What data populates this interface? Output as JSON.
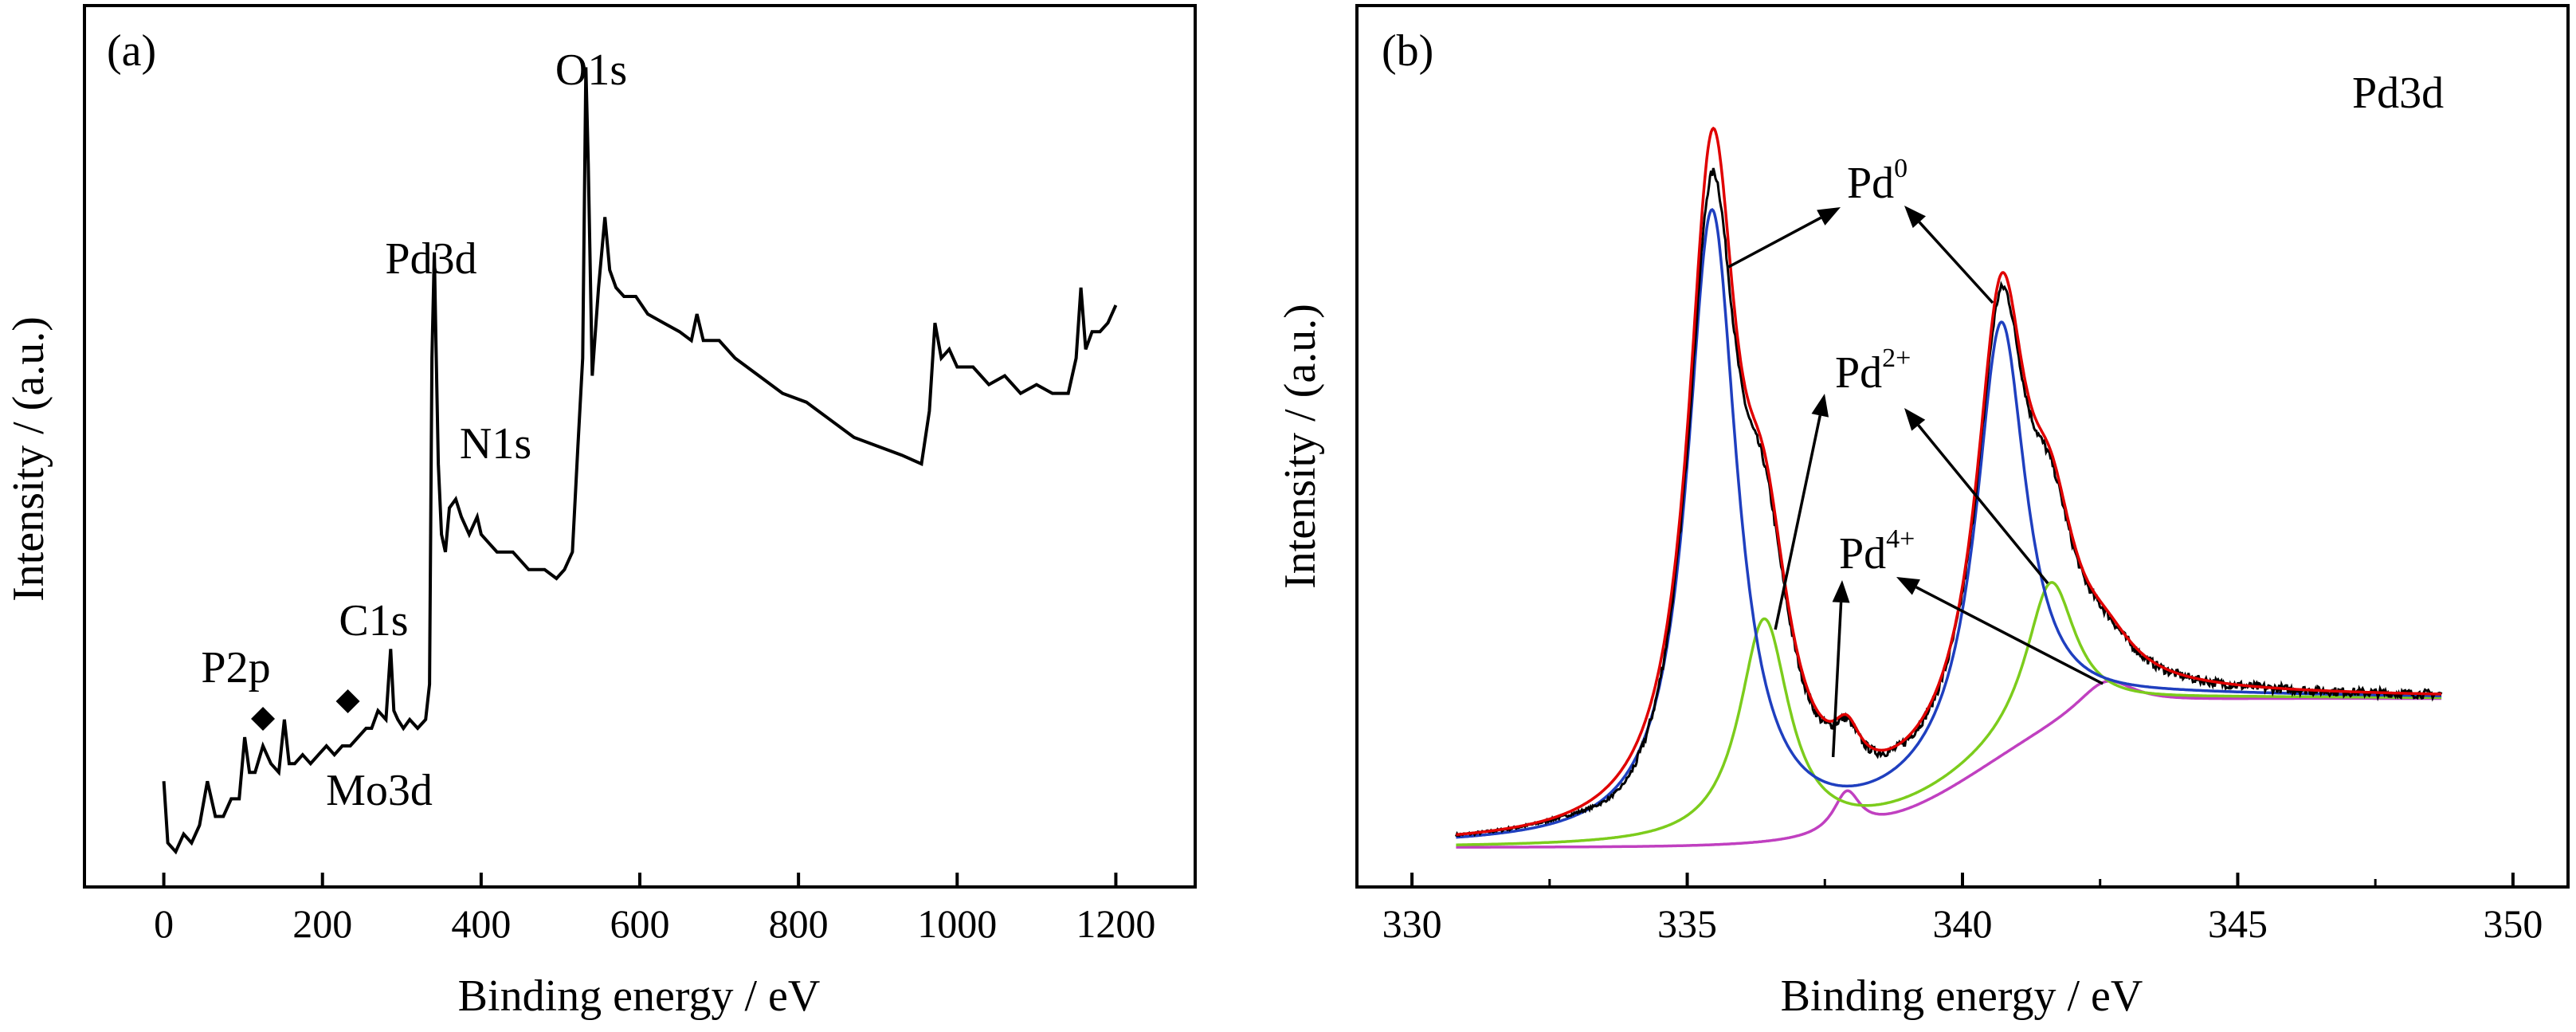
{
  "figure_description_labels": {
    "panel_a_tag": "(a)",
    "panel_b_tag": "(b)"
  },
  "chart_data": [
    {
      "type": "line",
      "panel": "(a)",
      "xlabel": "Binding energy / eV",
      "ylabel": "Intensity / (a.u.)",
      "xlim": [
        -100,
        1300
      ],
      "ylim": [
        0,
        1
      ],
      "xticks": [
        0,
        200,
        400,
        600,
        800,
        1000,
        1200
      ],
      "grid": false,
      "y_tick_labels_shown": false,
      "annotations": [
        {
          "text": "O1s",
          "x": 532
        },
        {
          "text": "Pd3d",
          "x": 340
        },
        {
          "text": "N1s",
          "x": 400
        },
        {
          "text": "C1s",
          "x": 285
        },
        {
          "text": "P2p",
          "x": 133
        },
        {
          "text": "Mo3d",
          "x": 230
        }
      ],
      "markers": [
        {
          "shape": "diamond",
          "x": 125
        },
        {
          "shape": "diamond",
          "x": 232
        }
      ],
      "series": [
        {
          "color": "#000000",
          "x": [
            0,
            5,
            15,
            25,
            35,
            45,
            55,
            65,
            75,
            85,
            95,
            102,
            108,
            115,
            125,
            135,
            145,
            152,
            158,
            165,
            175,
            185,
            195,
            205,
            215,
            225,
            235,
            245,
            255,
            262,
            270,
            280,
            286,
            290,
            295,
            302,
            310,
            320,
            330,
            335,
            338,
            341,
            343,
            346,
            350,
            355,
            360,
            368,
            375,
            385,
            395,
            400,
            410,
            420,
            440,
            460,
            480,
            495,
            505,
            515,
            522,
            528,
            532,
            535,
            540,
            548,
            556,
            562,
            570,
            580,
            595,
            610,
            630,
            650,
            665,
            672,
            680,
            700,
            720,
            750,
            780,
            810,
            840,
            870,
            900,
            930,
            955,
            965,
            972,
            980,
            990,
            1000,
            1020,
            1040,
            1060,
            1080,
            1100,
            1120,
            1140,
            1150,
            1156,
            1162,
            1170,
            1180,
            1190,
            1200
          ],
          "y": [
            0.12,
            0.05,
            0.04,
            0.06,
            0.05,
            0.07,
            0.12,
            0.08,
            0.08,
            0.1,
            0.1,
            0.17,
            0.13,
            0.13,
            0.16,
            0.14,
            0.13,
            0.19,
            0.14,
            0.14,
            0.15,
            0.14,
            0.15,
            0.16,
            0.15,
            0.16,
            0.16,
            0.17,
            0.18,
            0.18,
            0.2,
            0.19,
            0.27,
            0.2,
            0.19,
            0.18,
            0.19,
            0.18,
            0.19,
            0.23,
            0.6,
            0.72,
            0.62,
            0.48,
            0.4,
            0.38,
            0.43,
            0.44,
            0.42,
            0.4,
            0.42,
            0.4,
            0.39,
            0.38,
            0.38,
            0.36,
            0.36,
            0.35,
            0.36,
            0.38,
            0.5,
            0.6,
            0.93,
            0.82,
            0.58,
            0.68,
            0.76,
            0.7,
            0.68,
            0.67,
            0.67,
            0.65,
            0.64,
            0.63,
            0.62,
            0.65,
            0.62,
            0.62,
            0.6,
            0.58,
            0.56,
            0.55,
            0.53,
            0.51,
            0.5,
            0.49,
            0.48,
            0.54,
            0.64,
            0.6,
            0.61,
            0.59,
            0.59,
            0.57,
            0.58,
            0.56,
            0.57,
            0.56,
            0.56,
            0.6,
            0.68,
            0.61,
            0.63,
            0.63,
            0.64,
            0.66
          ]
        }
      ]
    },
    {
      "type": "line",
      "panel": "(b)",
      "title": "Pd3d",
      "xlabel": "Binding energy / eV",
      "ylabel": "Intensity / (a.u.)",
      "xlim": [
        329,
        351
      ],
      "ylim": [
        0,
        1
      ],
      "xticks": [
        330,
        335,
        340,
        345,
        350
      ],
      "grid": false,
      "y_tick_labels_shown": false,
      "annotations": [
        {
          "text": "Pd",
          "sup": "0",
          "target_peaks": [
            335.4,
            340.7
          ]
        },
        {
          "text": "Pd",
          "sup": "2+",
          "target_peaks": [
            336.4,
            341.6
          ]
        },
        {
          "text": "Pd",
          "sup": "4+",
          "target_peaks": [
            337.9,
            342.6
          ]
        }
      ],
      "components": {
        "background": {
          "left": 0.02,
          "right": 0.22,
          "centre": 340.3,
          "width": 1.1
        },
        "peaks": [
          {
            "centre": 335.45,
            "amp": 0.85,
            "gamma": 0.55,
            "series": "Pd0 fit"
          },
          {
            "centre": 340.7,
            "amp": 0.58,
            "gamma": 0.55,
            "series": "Pd0 fit"
          },
          {
            "centre": 336.4,
            "amp": 0.3,
            "gamma": 0.55,
            "series": "Pd2+ fit"
          },
          {
            "centre": 341.6,
            "amp": 0.2,
            "gamma": 0.55,
            "series": "Pd2+ fit"
          },
          {
            "centre": 337.9,
            "amp": 0.055,
            "gamma": 0.3,
            "series": "Pd4+ fit"
          },
          {
            "centre": 342.6,
            "amp": 0.045,
            "gamma": 0.65,
            "series": "Pd4+ fit"
          }
        ]
      },
      "series": [
        {
          "key": "envelope",
          "color": "#e00000",
          "x_range": [
            330.8,
            348.7
          ]
        },
        {
          "key": "experimental",
          "color": "#000000",
          "x_range": [
            330.8,
            348.7
          ]
        },
        {
          "key": "pd0",
          "color": "#1f3fbf",
          "x_range": [
            330.8,
            348.7
          ]
        },
        {
          "key": "pd2",
          "color": "#7ccc1c",
          "x_range": [
            330.8,
            348.7
          ]
        },
        {
          "key": "pd4",
          "color": "#c040c0",
          "x_range": [
            330.8,
            348.7
          ]
        }
      ]
    }
  ]
}
